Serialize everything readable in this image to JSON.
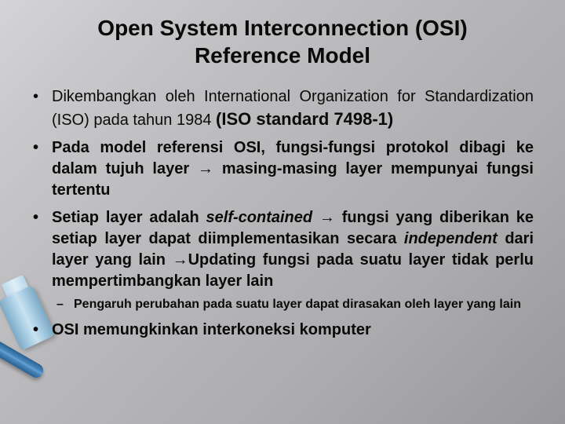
{
  "slide": {
    "title_line1": "Open System Interconnection (OSI)",
    "title_line2": "Reference Model",
    "bullets": {
      "b1_part1": "Dikembangkan oleh International Organization for Standardization (ISO) pada tahun 1984 ",
      "b1_emph_open": "(ISO standard 7498-1)",
      "b2_part1": "Pada model referensi OSI, fungsi-fungsi protokol dibagi ke dalam tujuh layer ",
      "b2_arrow1": "→",
      "b2_part2": " masing-masing layer mempunyai fungsi tertentu",
      "b3_part1": "Setiap layer adalah ",
      "b3_it1": "self-contained",
      "b3_part2": " ",
      "b3_arrow1": "→",
      "b3_part3": " fungsi yang diberikan ke setiap layer dapat diimplementasikan secara ",
      "b3_it2": "independent",
      "b3_part4": " dari layer yang lain ",
      "b3_arrow2": "→",
      "b3_part5": "Updating fungsi pada suatu layer tidak perlu mempertimbangkan layer lain",
      "b3_sub1": "Pengaruh perubahan pada suatu layer dapat dirasakan oleh layer yang lain",
      "b4_part1": "OSI memungkinkan interkoneksi komputer"
    },
    "colors": {
      "text": "#0a0a0a",
      "bg_light": "#d4d4d6",
      "bg_dark": "#98989a",
      "cable_blue": "#4a8abf",
      "cable_light": "#c9e2f0"
    },
    "typography": {
      "title_fontsize": 28,
      "bullet_fontsize": 20,
      "sub_fontsize": 16,
      "font_family": "Arial"
    }
  }
}
